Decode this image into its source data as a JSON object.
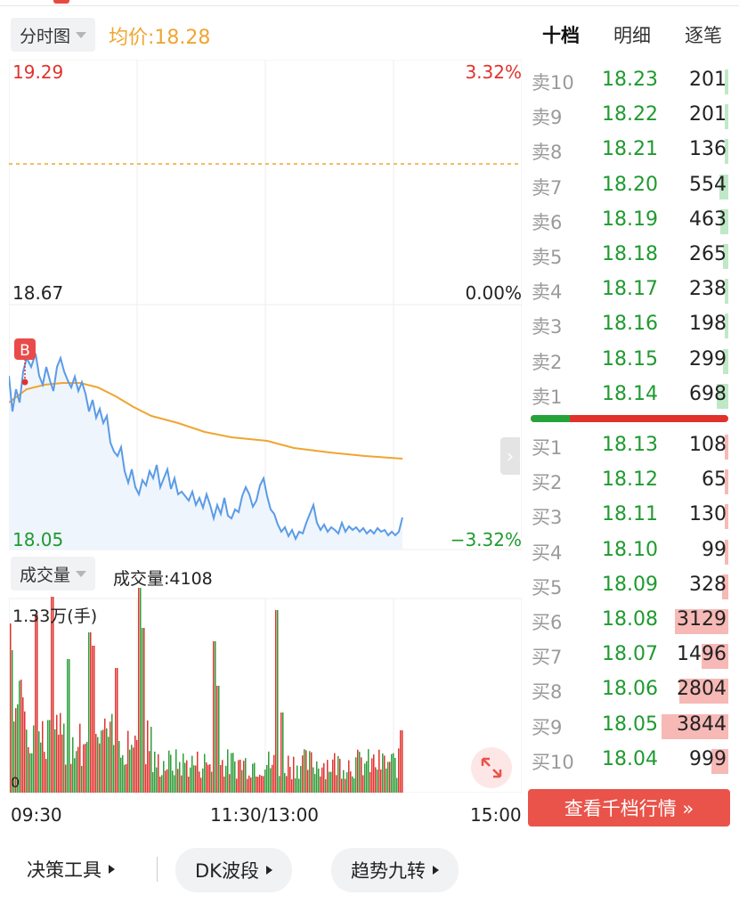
{
  "header": {
    "chart_mode": "分时图",
    "avg_price_text": "均价:18.28"
  },
  "price_chart": {
    "top_price": "19.29",
    "top_pct": "3.32%",
    "mid_price": "18.67",
    "mid_pct": "0.00%",
    "low_price": "18.05",
    "low_pct": "−3.32%",
    "trade_marker": "B"
  },
  "volume": {
    "selector": "成交量",
    "label": "成交量:4108",
    "max_label": "1.33万(手)",
    "zero_label": "0"
  },
  "time_axis": [
    "09:30",
    "11:30/13:00",
    "15:00"
  ],
  "order_book": {
    "tabs": [
      "十档",
      "明细",
      "逐笔"
    ],
    "asks": [
      {
        "level": "卖10",
        "price": "18.23",
        "volume": "201",
        "bar": 0.03
      },
      {
        "level": "卖9",
        "price": "18.22",
        "volume": "201",
        "bar": 0.03
      },
      {
        "level": "卖8",
        "price": "18.21",
        "volume": "136",
        "bar": 0.02
      },
      {
        "level": "卖7",
        "price": "18.20",
        "volume": "554",
        "bar": 0.07
      },
      {
        "level": "卖6",
        "price": "18.19",
        "volume": "463",
        "bar": 0.06
      },
      {
        "level": "卖5",
        "price": "18.18",
        "volume": "265",
        "bar": 0.04
      },
      {
        "level": "卖4",
        "price": "18.17",
        "volume": "238",
        "bar": 0.03
      },
      {
        "level": "卖3",
        "price": "18.16",
        "volume": "198",
        "bar": 0.03
      },
      {
        "level": "卖2",
        "price": "18.15",
        "volume": "299",
        "bar": 0.04
      },
      {
        "level": "卖1",
        "price": "18.14",
        "volume": "698",
        "bar": 0.09
      }
    ],
    "bids": [
      {
        "level": "买1",
        "price": "18.13",
        "volume": "108",
        "bar": 0.02
      },
      {
        "level": "买2",
        "price": "18.12",
        "volume": "65",
        "bar": 0.01
      },
      {
        "level": "买3",
        "price": "18.11",
        "volume": "130",
        "bar": 0.02
      },
      {
        "level": "买4",
        "price": "18.10",
        "volume": "99",
        "bar": 0.01
      },
      {
        "level": "买5",
        "price": "18.09",
        "volume": "328",
        "bar": 0.05
      },
      {
        "level": "买6",
        "price": "18.08",
        "volume": "3129",
        "bar": 0.4
      },
      {
        "level": "买7",
        "price": "18.07",
        "volume": "1496",
        "bar": 0.2
      },
      {
        "level": "买8",
        "price": "18.06",
        "volume": "2804",
        "bar": 0.37
      },
      {
        "level": "买9",
        "price": "18.05",
        "volume": "3844",
        "bar": 0.5
      },
      {
        "level": "买10",
        "price": "18.04",
        "volume": "999",
        "bar": 0.13
      }
    ],
    "buy_sell_ratio": 0.2,
    "view_button": "查看千档行情 »"
  },
  "tools": {
    "decision": "决策工具",
    "dk": "DK波段",
    "trend": "趋势九转"
  },
  "colors": {
    "up": "#e0332e",
    "down": "#1f9a2f",
    "price_line": "#5b9be6",
    "avg_line": "#f0a530"
  }
}
